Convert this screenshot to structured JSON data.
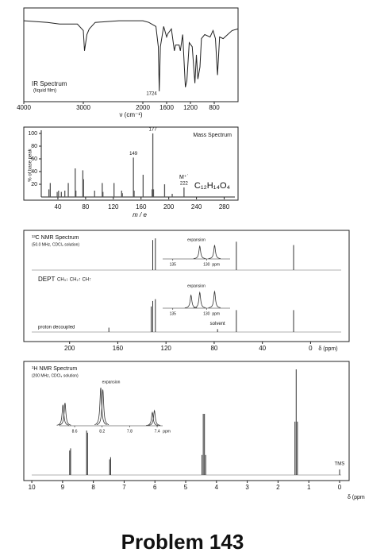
{
  "page_title": "Problem 143",
  "chart_data": [
    {
      "type": "line",
      "title": "IR Spectrum",
      "subtitle": "(liquid film)",
      "x_label": "ν (cm⁻¹)",
      "color": "#222",
      "xlim": [
        4000,
        400
      ],
      "xticks": [
        4000,
        3000,
        2000,
        1600,
        1200,
        800
      ],
      "ylim": [
        0,
        100
      ],
      "x": [
        4000,
        3600,
        3400,
        3100,
        3000,
        2980,
        2940,
        2900,
        2800,
        2400,
        2000,
        1900,
        1780,
        1740,
        1724,
        1705,
        1650,
        1600,
        1580,
        1520,
        1470,
        1450,
        1390,
        1370,
        1330,
        1285,
        1260,
        1220,
        1170,
        1125,
        1100,
        1075,
        1040,
        1015,
        960,
        870,
        820,
        780,
        745,
        710,
        650,
        500,
        400
      ],
      "values": [
        92,
        90,
        88,
        88,
        80,
        55,
        75,
        82,
        90,
        92,
        92,
        90,
        85,
        60,
        5,
        60,
        85,
        72,
        76,
        82,
        55,
        62,
        62,
        55,
        75,
        10,
        18,
        65,
        60,
        15,
        50,
        20,
        35,
        70,
        75,
        72,
        80,
        70,
        25,
        72,
        70,
        80,
        82
      ],
      "annotations": [
        1724
      ]
    },
    {
      "type": "bar",
      "title": "Mass Spectrum",
      "x_label": "m / e",
      "y_label": "% of base peak",
      "formula": "C₁₂H₁₄O₄",
      "color": "#555",
      "xlim": [
        16,
        300
      ],
      "xticks": [
        40,
        80,
        120,
        160,
        200,
        240,
        280
      ],
      "ylim": [
        0,
        100
      ],
      "yticks": [
        20,
        40,
        60,
        80,
        100
      ],
      "x": [
        27,
        29,
        39,
        41,
        45,
        50,
        55,
        65,
        66,
        76,
        77,
        93,
        104,
        105,
        121,
        132,
        133,
        149,
        150,
        163,
        176,
        177,
        178,
        194,
        205,
        222
      ],
      "values": [
        12,
        22,
        8,
        10,
        8,
        10,
        22,
        45,
        10,
        42,
        28,
        10,
        22,
        8,
        22,
        10,
        6,
        62,
        10,
        35,
        12,
        100,
        12,
        20,
        5,
        15
      ],
      "annotations": [
        149,
        177,
        222
      ],
      "molecular_ion_label": "M⁺˙"
    },
    {
      "type": "stem",
      "title": "¹³C NMR Spectrum",
      "subtitle": "(50.0 MHz, CDCl₃ solution)",
      "x_label": "δ (ppm)",
      "dept_legend": "CH₃↓ CH₂↑ CH↑",
      "xlim": [
        238,
        -32
      ],
      "xticks": [
        200,
        160,
        120,
        80,
        40,
        0
      ],
      "ylim": [
        0,
        100
      ],
      "series": [
        {
          "name": "DEPT",
          "color": "#333",
          "x": [
            131.0,
            128.8,
            61.6,
            14.1
          ],
          "values": [
            90,
            95,
            85,
            75
          ]
        },
        {
          "name": "proton decoupled",
          "color": "#333",
          "x": [
            167.4,
            132.3,
            131.0,
            128.8,
            77.2,
            61.6,
            14.1
          ],
          "values": [
            12,
            70,
            85,
            90,
            8,
            60,
            60
          ]
        }
      ],
      "annotations": [
        {
          "value": 77.2,
          "label": "solvent"
        }
      ],
      "inset": {
        "title": "expansion",
        "xlim": [
          136.5,
          126.5
        ],
        "xticks": [
          135,
          130
        ],
        "unit": "ppm"
      }
    },
    {
      "type": "stem",
      "title": "¹H NMR Spectrum",
      "subtitle": "(200 MHz, CDCl₃ solution)",
      "x_label": "δ (ppm)",
      "color": "#333",
      "xlim": [
        10.26,
        -0.31
      ],
      "xticks": [
        10,
        9,
        8,
        7,
        6,
        5,
        4,
        3,
        2,
        1,
        0
      ],
      "ylim": [
        0,
        100
      ],
      "x": [
        8.77,
        8.74,
        8.22,
        8.19,
        7.47,
        7.44,
        4.47,
        4.43,
        4.39,
        4.35,
        1.45,
        1.41,
        1.37,
        0
      ],
      "values": [
        22,
        24,
        40,
        38,
        14,
        16,
        18,
        55,
        55,
        18,
        48,
        95,
        48,
        5
      ],
      "annotations": [
        {
          "value": 0,
          "label": "TMS"
        }
      ],
      "inset": {
        "title": "expansion",
        "xlim": [
          8.82,
          7.32
        ],
        "xticks": [
          8.6,
          8.2,
          7.8,
          7.4
        ],
        "unit": "ppm"
      }
    }
  ]
}
